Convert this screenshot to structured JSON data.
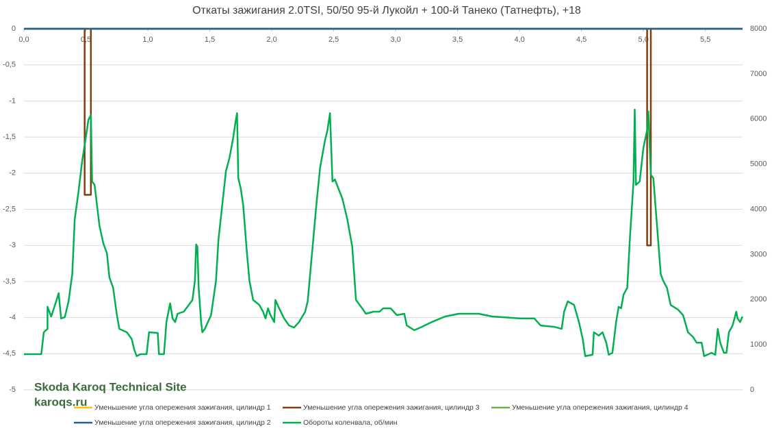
{
  "chart_data": {
    "type": "line",
    "title": "Откаты зажигания 2.0TSI, 50/50 95-й Лукойл + 100-й Танеко (Татнефть), +18",
    "annotations": [
      "Skoda Karoq Technical Site",
      "karoqs.ru"
    ],
    "xlim": [
      0,
      5.8
    ],
    "xticks": [
      {
        "value": 0,
        "label": "0,0"
      },
      {
        "value": 0.5,
        "label": "0,5"
      },
      {
        "value": 1,
        "label": "1,0"
      },
      {
        "value": 1.5,
        "label": "1,5"
      },
      {
        "value": 2,
        "label": "2,0"
      },
      {
        "value": 2.5,
        "label": "2,5"
      },
      {
        "value": 3,
        "label": "3,0"
      },
      {
        "value": 3.5,
        "label": "3,5"
      },
      {
        "value": 4,
        "label": "4,0"
      },
      {
        "value": 4.5,
        "label": "4,5"
      },
      {
        "value": 5,
        "label": "5,0"
      },
      {
        "value": 5.5,
        "label": "5,5"
      }
    ],
    "ylim": [
      -5,
      0
    ],
    "yticks": [
      0,
      {
        "value": -0.5,
        "label": "-0,5"
      },
      -1,
      {
        "value": -1.5,
        "label": "-1,5"
      },
      -2,
      {
        "value": -2.5,
        "label": "-2,5"
      },
      -3,
      {
        "value": -3.5,
        "label": "-3,5"
      },
      -4,
      {
        "value": -4.5,
        "label": "-4,5"
      },
      -5
    ],
    "y2lim": [
      0,
      8000
    ],
    "y2ticks": [
      0,
      1000,
      2000,
      3000,
      4000,
      5000,
      6000,
      7000,
      8000
    ],
    "grid": true,
    "legend": "bottom",
    "series": [
      {
        "name": "Уменьшение угла опережения зажигания, цилиндр 1",
        "color": "#ffc000",
        "x": [
          0,
          5.8
        ],
        "values": [
          0,
          0
        ]
      },
      {
        "name": "Уменьшение угла опережения зажигания, цилиндр 3",
        "color": "#843c0c",
        "x": [
          0,
          0.49,
          0.49,
          0.54,
          0.54,
          5.03,
          5.03,
          5.06,
          5.06,
          5.8
        ],
        "values": [
          0,
          0,
          -2.3,
          -2.3,
          0,
          0,
          -3,
          -3,
          0,
          0
        ]
      },
      {
        "name": "Уменьшение угла опережения зажигания, цилиндр 4",
        "color": "#70ad47",
        "x": [
          0,
          5.8
        ],
        "values": [
          0,
          0
        ]
      },
      {
        "name": "Уменьшение угла опережения зажигания, цилиндр 2",
        "color": "#255e91",
        "x": [
          0,
          5.8
        ],
        "values": [
          0,
          0
        ]
      },
      {
        "name": "Обороты коленвала, об/мин",
        "color": "#00b050",
        "axis": "y2",
        "x": [
          0,
          0.14,
          0.16,
          0.19,
          0.19,
          0.22,
          0.26,
          0.28,
          0.3,
          0.33,
          0.36,
          0.39,
          0.41,
          0.44,
          0.47,
          0.5,
          0.52,
          0.54,
          0.55,
          0.57,
          0.61,
          0.64,
          0.67,
          0.69,
          0.72,
          0.75,
          0.77,
          0.83,
          0.87,
          0.89,
          0.91,
          0.94,
          0.99,
          1.01,
          1.08,
          1.09,
          1.13,
          1.15,
          1.18,
          1.2,
          1.22,
          1.24,
          1.29,
          1.33,
          1.36,
          1.38,
          1.39,
          1.4,
          1.41,
          1.43,
          1.44,
          1.46,
          1.51,
          1.55,
          1.57,
          1.6,
          1.63,
          1.66,
          1.69,
          1.71,
          1.72,
          1.73,
          1.75,
          1.77,
          1.8,
          1.82,
          1.85,
          1.9,
          1.93,
          1.95,
          1.97,
          1.99,
          2.02,
          2.03,
          2.06,
          2.1,
          2.14,
          2.18,
          2.22,
          2.27,
          2.29,
          2.33,
          2.36,
          2.39,
          2.43,
          2.45,
          2.47,
          2.49,
          2.51,
          2.57,
          2.61,
          2.65,
          2.68,
          2.73,
          2.76,
          2.82,
          2.87,
          2.9,
          2.96,
          3.01,
          3.07,
          3.09,
          3.15,
          3.2,
          3.29,
          3.4,
          3.51,
          3.67,
          3.78,
          4.01,
          4.12,
          4.17,
          4.28,
          4.34,
          4.36,
          4.39,
          4.44,
          4.48,
          4.51,
          4.53,
          4.59,
          4.6,
          4.64,
          4.67,
          4.7,
          4.72,
          4.75,
          4.78,
          4.8,
          4.82,
          4.84,
          4.87,
          4.89,
          4.92,
          4.93,
          4.94,
          4.97,
          5.0,
          5.03,
          5.04,
          5.06,
          5.08,
          5.11,
          5.14,
          5.16,
          5.19,
          5.22,
          5.28,
          5.32,
          5.36,
          5.4,
          5.43,
          5.47,
          5.49,
          5.55,
          5.58,
          5.6,
          5.62,
          5.65,
          5.67,
          5.69,
          5.72,
          5.75,
          5.76,
          5.78,
          5.8
        ],
        "values": [
          790,
          790,
          1275,
          1350,
          1840,
          1625,
          1960,
          2140,
          1580,
          1610,
          1960,
          2565,
          3780,
          4390,
          5070,
          5600,
          5980,
          6090,
          4615,
          4540,
          3630,
          3250,
          3020,
          2490,
          2260,
          1655,
          1350,
          1275,
          1125,
          895,
          745,
          790,
          790,
          1275,
          1260,
          790,
          790,
          1500,
          1915,
          1580,
          1500,
          1685,
          1730,
          1880,
          1990,
          2415,
          3220,
          3170,
          2260,
          1500,
          1275,
          1350,
          1655,
          2415,
          3325,
          4085,
          4840,
          5150,
          5600,
          5980,
          6130,
          4690,
          4460,
          4085,
          3020,
          2415,
          1990,
          1880,
          1730,
          1580,
          1805,
          1655,
          1500,
          1990,
          1805,
          1580,
          1425,
          1380,
          1500,
          1730,
          1960,
          3170,
          4085,
          4920,
          5525,
          5755,
          6130,
          4615,
          4660,
          4235,
          3780,
          3170,
          1990,
          1805,
          1685,
          1730,
          1730,
          1805,
          1805,
          1655,
          1685,
          1425,
          1320,
          1380,
          1500,
          1625,
          1685,
          1685,
          1625,
          1580,
          1580,
          1425,
          1395,
          1350,
          1730,
          1960,
          1880,
          1500,
          1125,
          745,
          775,
          1275,
          1200,
          1275,
          1045,
          775,
          820,
          1500,
          1840,
          1805,
          2110,
          2260,
          3325,
          4615,
          6210,
          4540,
          4615,
          5370,
          5755,
          6165,
          4765,
          4690,
          3630,
          2565,
          2415,
          2260,
          1880,
          1775,
          1655,
          1275,
          1170,
          1045,
          1045,
          745,
          820,
          775,
          1350,
          1045,
          820,
          820,
          1275,
          1425,
          1730,
          1580,
          1500,
          1625
        ]
      }
    ]
  }
}
